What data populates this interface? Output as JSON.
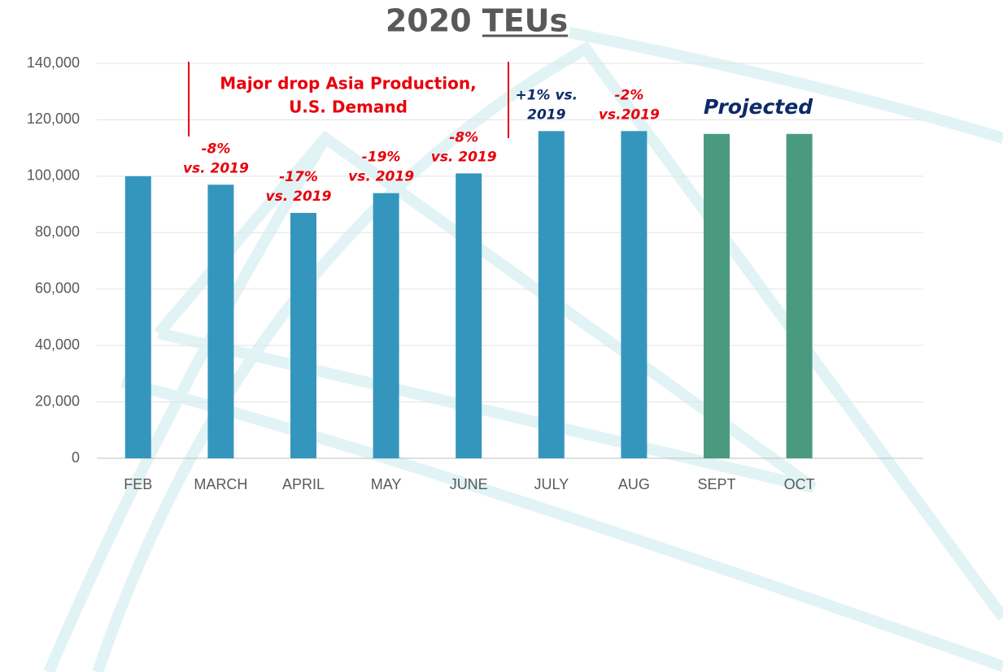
{
  "chart_data": {
    "type": "bar",
    "title": "2020 TEUs",
    "categories": [
      "FEB",
      "MARCH",
      "APRIL",
      "MAY",
      "JUNE",
      "JULY",
      "AUG",
      "SEPT",
      "OCT"
    ],
    "values": [
      100000,
      97000,
      87000,
      94000,
      101000,
      116000,
      116000,
      115000,
      115000
    ],
    "colors": [
      "#3596bd",
      "#3596bd",
      "#3596bd",
      "#3596bd",
      "#3596bd",
      "#3596bd",
      "#3596bd",
      "#4a9a80",
      "#4a9a80"
    ],
    "ylim": [
      0,
      140000
    ],
    "yticks": [
      0,
      {
        "value": 20000,
        "label": "20,000"
      },
      {
        "value": 40000,
        "label": "40,000"
      },
      {
        "value": 60000,
        "label": "60,000"
      },
      {
        "value": 80000,
        "label": "80,000"
      },
      {
        "value": 100000,
        "label": "100,000"
      },
      {
        "value": 120000,
        "label": "120,000"
      },
      {
        "value": 140000,
        "label": "140,000"
      }
    ],
    "grid": true,
    "bar_annotations": [
      null,
      [
        "-8%",
        "vs. 2019"
      ],
      [
        "-17%",
        "vs. 2019"
      ],
      [
        "-19%",
        "vs. 2019"
      ],
      [
        "-8%",
        "vs. 2019"
      ],
      [
        "+1% vs.",
        "2019"
      ],
      [
        "-2%",
        "vs.2019"
      ],
      null,
      null
    ],
    "bar_annotation_colors": [
      null,
      "#e8000b",
      "#e8000b",
      "#e8000b",
      "#e8000b",
      "#0d2a66",
      "#e8000b",
      null,
      null
    ],
    "range_annotation": [
      "Major drop Asia Production,",
      "U.S. Demand"
    ],
    "projected_annotation": "Projected"
  }
}
